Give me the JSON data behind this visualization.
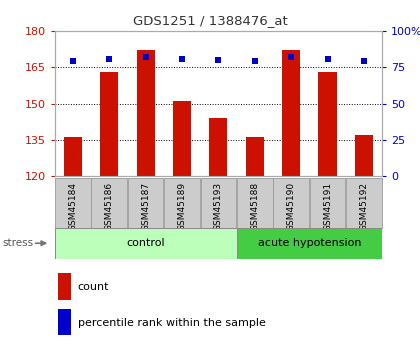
{
  "title": "GDS1251 / 1388476_at",
  "samples": [
    "GSM45184",
    "GSM45186",
    "GSM45187",
    "GSM45189",
    "GSM45193",
    "GSM45188",
    "GSM45190",
    "GSM45191",
    "GSM45192"
  ],
  "counts": [
    136,
    163,
    172,
    151,
    144,
    136,
    172,
    163,
    137
  ],
  "percentiles": [
    79,
    81,
    82,
    81,
    80,
    79,
    82,
    81,
    79
  ],
  "ylim_left": [
    120,
    180
  ],
  "ylim_right": [
    0,
    100
  ],
  "yticks_left": [
    120,
    135,
    150,
    165,
    180
  ],
  "yticks_right": [
    0,
    25,
    50,
    75,
    100
  ],
  "ytick_labels_right": [
    "0",
    "25",
    "50",
    "75",
    "100%"
  ],
  "bar_color": "#cc1100",
  "dot_color": "#0000cc",
  "bar_bottom": 120,
  "group1_label": "control",
  "group1_indices": [
    0,
    1,
    2,
    3,
    4
  ],
  "group1_color": "#bbffbb",
  "group2_label": "acute hypotension",
  "group2_indices": [
    5,
    6,
    7,
    8
  ],
  "group2_color": "#44cc44",
  "stress_label": "stress",
  "legend_count": "count",
  "legend_pct": "percentile rank within the sample",
  "tick_color_left": "#cc1100",
  "tick_color_right": "#0000cc",
  "title_color": "#333333",
  "xtick_bg_color": "#cccccc",
  "xtick_border_color": "#999999"
}
